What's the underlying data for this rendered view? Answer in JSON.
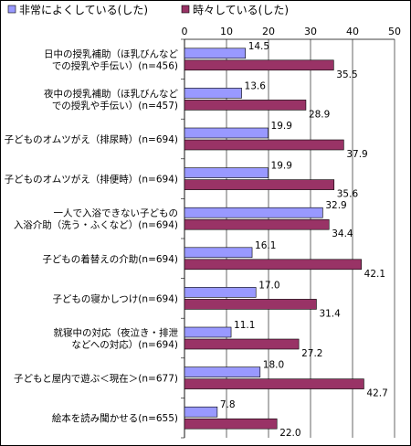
{
  "chart_data": {
    "type": "bar",
    "orientation": "horizontal",
    "xlim": [
      0,
      50
    ],
    "xticks": [
      0,
      10,
      20,
      30,
      40,
      50
    ],
    "grid": true,
    "legend_position": "top",
    "categories": [
      [
        "日中の授乳補助（ほ乳びんなど",
        "での授乳や手伝い）(n=456)"
      ],
      [
        "夜中の授乳補助（ほ乳びんなど",
        "での授乳や手伝い）(n=457)"
      ],
      [
        "子どものオムツがえ（排尿時）(n=694)"
      ],
      [
        "子どものオムツがえ（排便時）(n=694)"
      ],
      [
        "一人で入浴できない子どもの",
        "入浴介助（洗う・ふくなど）(n=694)"
      ],
      [
        "子どもの着替えの介助(n=694)"
      ],
      [
        "子どもの寝かしつけ(n=694)"
      ],
      [
        "就寝中の対応（夜泣き・排泄",
        "などへの対応）(n=694)"
      ],
      [
        "子どもと屋内で遊ぶ＜現在＞(n=677)"
      ],
      [
        "絵本を読み聞かせる(n=655)"
      ]
    ],
    "series": [
      {
        "name": "非常によくしている(した)",
        "color": "#9999ff",
        "values": [
          14.5,
          13.6,
          19.9,
          19.9,
          32.9,
          16.1,
          17.0,
          11.1,
          18.0,
          7.8
        ]
      },
      {
        "name": "時々している(した)",
        "color": "#993366",
        "values": [
          35.5,
          28.9,
          37.9,
          35.6,
          34.4,
          42.1,
          31.4,
          27.2,
          42.7,
          22.0
        ]
      }
    ]
  }
}
